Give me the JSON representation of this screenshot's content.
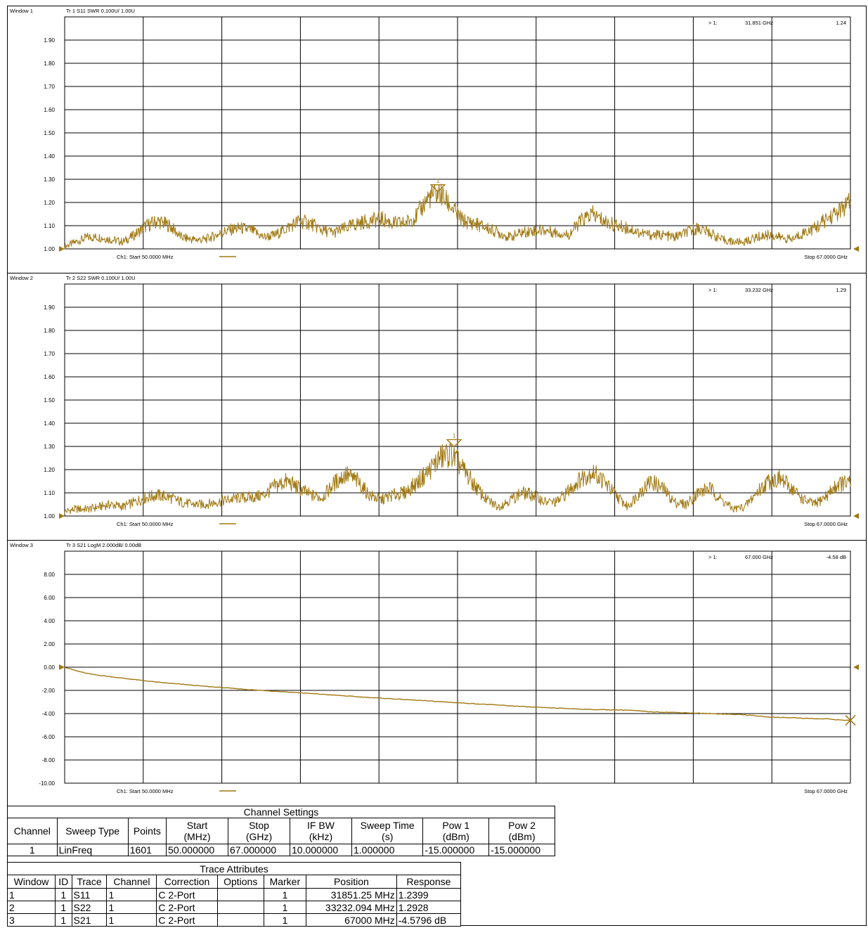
{
  "chart_data": [
    {
      "type": "line",
      "window_label": "Window 1",
      "trace_label": "Tr 1  S11 SWR 0.100U/  1.00U",
      "marker_readout": {
        "symbol": "> 1:",
        "x": "31.851 GHz",
        "value": "1.24"
      },
      "start_label": "Ch1: Start  50.0000 MHz",
      "stop_label": "Stop  67.0000 GHz",
      "ylim": [
        1.0,
        2.0
      ],
      "yticks": [
        "1.00",
        "1.10",
        "1.20",
        "1.30",
        "1.40",
        "1.50",
        "1.60",
        "1.70",
        "1.80",
        "1.90"
      ],
      "x_ghz_range": [
        0.05,
        67.0
      ],
      "marker_x_ghz": 31.851,
      "marker_value": 1.2399,
      "series": [
        {
          "x": [
            0.05,
            1,
            2,
            3,
            4,
            5,
            6,
            7,
            8,
            9,
            10,
            11,
            12,
            13,
            14,
            15,
            16,
            17,
            18,
            19,
            20,
            21,
            22,
            23,
            24,
            25,
            26,
            27,
            28,
            29,
            30,
            31,
            32,
            33,
            34,
            35,
            36,
            37,
            38,
            39,
            40,
            41,
            42,
            43,
            44,
            45,
            46,
            47,
            48,
            49,
            50,
            51,
            52,
            53,
            54,
            55,
            56,
            57,
            58,
            59,
            60,
            61,
            62,
            63,
            64,
            65,
            66,
            67
          ],
          "values": [
            1.01,
            1.03,
            1.05,
            1.05,
            1.04,
            1.03,
            1.06,
            1.1,
            1.12,
            1.1,
            1.05,
            1.04,
            1.04,
            1.06,
            1.08,
            1.09,
            1.08,
            1.05,
            1.06,
            1.09,
            1.12,
            1.11,
            1.08,
            1.07,
            1.09,
            1.11,
            1.12,
            1.13,
            1.11,
            1.11,
            1.14,
            1.22,
            1.24,
            1.18,
            1.12,
            1.11,
            1.09,
            1.07,
            1.05,
            1.07,
            1.08,
            1.08,
            1.07,
            1.06,
            1.12,
            1.15,
            1.12,
            1.1,
            1.09,
            1.07,
            1.06,
            1.06,
            1.05,
            1.07,
            1.09,
            1.07,
            1.04,
            1.03,
            1.03,
            1.05,
            1.06,
            1.05,
            1.04,
            1.07,
            1.09,
            1.13,
            1.16,
            1.2
          ]
        }
      ]
    },
    {
      "type": "line",
      "window_label": "Window 2",
      "trace_label": "Tr 2  S22 SWR 0.100U/  1.00U",
      "marker_readout": {
        "symbol": "> 1:",
        "x": "33.232 GHz",
        "value": "1.29"
      },
      "start_label": "Ch1: Start  50.0000 MHz",
      "stop_label": "Stop  67.0000 GHz",
      "ylim": [
        1.0,
        2.0
      ],
      "yticks": [
        "1.00",
        "1.10",
        "1.20",
        "1.30",
        "1.40",
        "1.50",
        "1.60",
        "1.70",
        "1.80",
        "1.90"
      ],
      "x_ghz_range": [
        0.05,
        67.0
      ],
      "marker_x_ghz": 33.232,
      "marker_value": 1.2928,
      "series": [
        {
          "x": [
            0.05,
            1,
            2,
            3,
            4,
            5,
            6,
            7,
            8,
            9,
            10,
            11,
            12,
            13,
            14,
            15,
            16,
            17,
            18,
            19,
            20,
            21,
            22,
            23,
            24,
            25,
            26,
            27,
            28,
            29,
            30,
            31,
            32,
            33,
            34,
            35,
            36,
            37,
            38,
            39,
            40,
            41,
            42,
            43,
            44,
            45,
            46,
            47,
            48,
            49,
            50,
            51,
            52,
            53,
            54,
            55,
            56,
            57,
            58,
            59,
            60,
            61,
            62,
            63,
            64,
            65,
            66,
            67
          ],
          "values": [
            1.02,
            1.03,
            1.03,
            1.04,
            1.05,
            1.04,
            1.06,
            1.08,
            1.09,
            1.08,
            1.06,
            1.05,
            1.05,
            1.06,
            1.07,
            1.08,
            1.08,
            1.09,
            1.13,
            1.15,
            1.12,
            1.09,
            1.08,
            1.14,
            1.18,
            1.15,
            1.09,
            1.07,
            1.09,
            1.1,
            1.14,
            1.19,
            1.25,
            1.27,
            1.2,
            1.13,
            1.07,
            1.04,
            1.07,
            1.1,
            1.09,
            1.06,
            1.06,
            1.11,
            1.16,
            1.19,
            1.15,
            1.09,
            1.04,
            1.1,
            1.15,
            1.12,
            1.06,
            1.05,
            1.1,
            1.12,
            1.07,
            1.03,
            1.04,
            1.1,
            1.15,
            1.16,
            1.12,
            1.07,
            1.05,
            1.09,
            1.14,
            1.14
          ]
        }
      ]
    },
    {
      "type": "line",
      "window_label": "Window 3",
      "trace_label": "Tr 3  S21 LogM 2.000dB/  0.00dB",
      "marker_readout": {
        "symbol": "> 1:",
        "x": "67.000 GHz",
        "value": "-4.58 dB"
      },
      "start_label": "Ch1: Start  50.0000 MHz",
      "stop_label": "Stop  67.0000 GHz",
      "ylim": [
        -10.0,
        10.0
      ],
      "yticks": [
        "-10.00",
        "-8.00",
        "-6.00",
        "-4.00",
        "-2.00",
        "0.00",
        "2.00",
        "4.00",
        "6.00",
        "8.00"
      ],
      "x_ghz_range": [
        0.05,
        67.0
      ],
      "marker_x_ghz": 67.0,
      "marker_value": -4.5796,
      "series": [
        {
          "x": [
            0.05,
            1,
            2,
            3,
            5,
            8,
            12,
            16,
            20,
            25,
            30,
            35,
            40,
            45,
            48,
            50,
            52,
            55,
            58,
            60,
            62,
            64,
            65,
            66,
            67
          ],
          "values": [
            0.0,
            -0.3,
            -0.55,
            -0.7,
            -0.95,
            -1.3,
            -1.65,
            -1.95,
            -2.2,
            -2.55,
            -2.85,
            -3.15,
            -3.45,
            -3.65,
            -3.7,
            -3.85,
            -3.9,
            -4.0,
            -4.1,
            -4.3,
            -4.35,
            -4.45,
            -4.45,
            -4.55,
            -4.58
          ]
        }
      ]
    }
  ],
  "color_trace": "#a07810",
  "channel_settings": {
    "caption": "Channel Settings",
    "headers": [
      "Channel",
      "Sweep Type",
      "Points",
      "Start\n(MHz)",
      "Stop\n(GHz)",
      "IF BW\n(kHz)",
      "Sweep Time\n(s)",
      "Pow 1\n(dBm)",
      "Pow 2\n(dBm)"
    ],
    "row": [
      "1",
      "LinFreq",
      "1601",
      "50.000000",
      "67.000000",
      "10.000000",
      "1.000000",
      "-15.000000",
      "-15.000000"
    ]
  },
  "trace_attributes": {
    "caption": "Trace Attributes",
    "headers": [
      "Window",
      "ID",
      "Trace",
      "Channel",
      "Correction",
      "Options",
      "Marker",
      "Position",
      "Response"
    ],
    "rows": [
      [
        "1",
        "1",
        "S11",
        "1",
        "C 2-Port",
        "",
        "1",
        "31851.25 MHz",
        "1.2399"
      ],
      [
        "2",
        "1",
        "S22",
        "1",
        "C 2-Port",
        "",
        "1",
        "33232.094 MHz",
        "1.2928"
      ],
      [
        "3",
        "1",
        "S21",
        "1",
        "C 2-Port",
        "",
        "1",
        "67000 MHz",
        "-4.5796 dB"
      ]
    ]
  }
}
